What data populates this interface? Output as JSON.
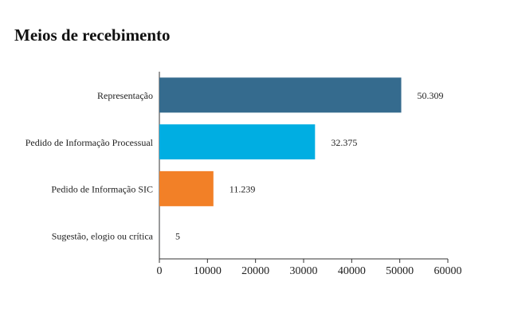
{
  "chart_data": {
    "type": "barh",
    "title": "Meios de recebimento",
    "categories": [
      "Representação",
      "Pedido de Informação Processual",
      "Pedido de Informação SIC",
      "Sugestão, elogio ou crítica"
    ],
    "values": [
      50309,
      32375,
      11239,
      5
    ],
    "value_labels": [
      "50.309",
      "32.375",
      "11.239",
      "5"
    ],
    "colors": [
      "#356b8e",
      "#00aee2",
      "#f28027",
      "#356b8e"
    ],
    "xlim": [
      0,
      60000
    ],
    "xticks": [
      0,
      10000,
      20000,
      30000,
      40000,
      50000,
      60000
    ]
  }
}
